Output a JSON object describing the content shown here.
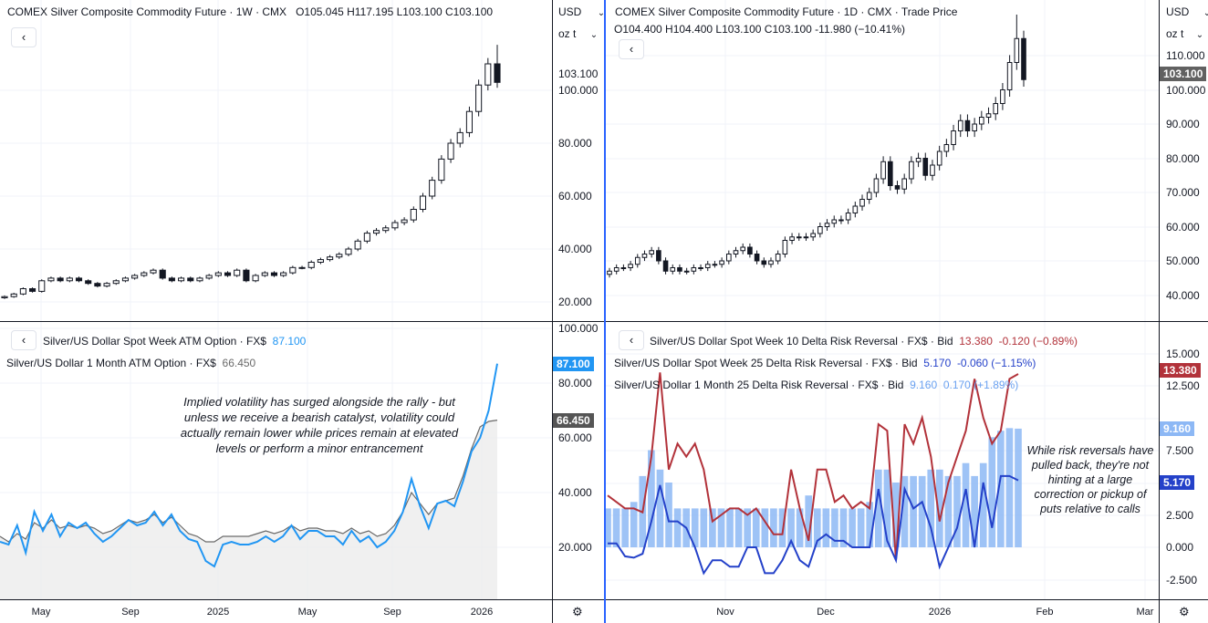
{
  "colors": {
    "candle": "#131722",
    "week_atm": "#2196f3",
    "month_atm": "#6a6a6a",
    "rr10": "#b2323a",
    "rr25w": "#2441c9",
    "rr25m": "#8db8f5",
    "grid": "#f0f3fa",
    "selected_border": "#2962ff",
    "price_tag_gray": "#616161",
    "price_tag_dark": "#555555"
  },
  "top_left": {
    "legend": {
      "title": "COMEX Silver Composite Commodity Future · 1W · CMX",
      "ohlc": "O105.045  H117.195  L103.100  C103.100"
    },
    "currency": "USD",
    "unit": "oz t",
    "axis": [
      "100.000",
      "80.000",
      "60.000",
      "40.000",
      "20.000"
    ],
    "last_label": "103.100",
    "closes": [
      22,
      23,
      25,
      24,
      28,
      29,
      28,
      29,
      28,
      27,
      26,
      27,
      28,
      29,
      30,
      31,
      32,
      29,
      28,
      29,
      28,
      29,
      30,
      31,
      30,
      32,
      28,
      30,
      31,
      30,
      31,
      33,
      33,
      35,
      36,
      37,
      38,
      40,
      43,
      46,
      47,
      48,
      50,
      51,
      55,
      60,
      66,
      74,
      80,
      84,
      92,
      102,
      110,
      103
    ],
    "last_high": 117.195
  },
  "top_right": {
    "legend": {
      "title": "COMEX Silver Composite Commodity Future · 1D · CMX · Trade Price",
      "ohlc": "O104.400  H104.400  L103.100  C103.100  -11.980 (−10.41%)"
    },
    "currency": "USD",
    "unit": "oz t",
    "axis": [
      "110.000",
      "100.000",
      "90.000",
      "80.000",
      "70.000",
      "60.000",
      "50.000",
      "40.000"
    ],
    "last_tag": "103.100",
    "closes": [
      47,
      48,
      48,
      49,
      51,
      52,
      53,
      50,
      47,
      48,
      47,
      47,
      48,
      48,
      49,
      49,
      50,
      52,
      53,
      54,
      52,
      50,
      49,
      50,
      52,
      56,
      57,
      57,
      57,
      58,
      60,
      61,
      62,
      62,
      64,
      66,
      68,
      70,
      74,
      79,
      72,
      71,
      74,
      79,
      80,
      75,
      78,
      82,
      84,
      88,
      91,
      88,
      90,
      92,
      93,
      96,
      100,
      108,
      115,
      103
    ],
    "peak_high": 122
  },
  "bottom_left": {
    "legend_week": {
      "title": "Silver/US Dollar Spot Week ATM Option · FX$",
      "value": "87.100"
    },
    "legend_month": {
      "title": "Silver/US Dollar 1 Month ATM Option · FX$",
      "value": "66.450"
    },
    "axis": [
      "100.000",
      "80.000",
      "60.000",
      "40.000",
      "20.000"
    ],
    "tag_week": "87.100",
    "tag_month": "66.450",
    "note": "Implied volatility has surged alongside the rally - but unless we receive a bearish catalyst, volatility could actually remain lower while prices remain at elevated levels or perform a minor entrancement",
    "week_atm": [
      22,
      21,
      28,
      18,
      33,
      26,
      32,
      24,
      29,
      27,
      29,
      25,
      22,
      24,
      27,
      30,
      28,
      29,
      33,
      28,
      32,
      26,
      23,
      22,
      15,
      13,
      21,
      22,
      21,
      21,
      22,
      24,
      22,
      24,
      28,
      23,
      26,
      26,
      24,
      24,
      21,
      26,
      22,
      24,
      20,
      22,
      26,
      33,
      45,
      35,
      27,
      36,
      37,
      35,
      44,
      55,
      60,
      70,
      87.1
    ],
    "month_atm": [
      24,
      22,
      25,
      23,
      29,
      27,
      30,
      27,
      28,
      27,
      28,
      27,
      25,
      26,
      28,
      30,
      29,
      30,
      32,
      29,
      31,
      28,
      25,
      24,
      22,
      22,
      24,
      24,
      24,
      24,
      25,
      26,
      25,
      26,
      28,
      26,
      27,
      27,
      26,
      26,
      25,
      27,
      25,
      26,
      24,
      25,
      28,
      33,
      40,
      36,
      32,
      36,
      37,
      38,
      46,
      56,
      64,
      66,
      66.45
    ]
  },
  "bottom_right": {
    "legend_rr10": {
      "title": "Silver/US Dollar Spot Week 10 Delta Risk Reversal · FX$ · Bid",
      "value": "13.380",
      "change": "-0.120 (−0.89%)"
    },
    "legend_rr25w": {
      "title": "Silver/US Dollar Spot Week 25 Delta Risk Reversal · FX$ · Bid",
      "value": "5.170",
      "change": "-0.060 (−1.15%)"
    },
    "legend_rr25m": {
      "title": "Silver/US Dollar 1 Month 25 Delta Risk Reversal · FX$ · Bid",
      "value": "9.160",
      "change": "0.170 (+1.89%)"
    },
    "axis": [
      "15.000",
      "12.500",
      "7.500",
      "2.500",
      "0.000",
      "-2.500"
    ],
    "tag_rr10": "13.380",
    "tag_rr25m": "9.160",
    "tag_rr25w": "5.170",
    "note": "While risk reversals have pulled back, they're not hinting at a large correction or pickup of puts relative to calls",
    "rr10": [
      4,
      3.5,
      3,
      3,
      2.7,
      7,
      13.5,
      6,
      8,
      7,
      8,
      6,
      2,
      2.5,
      3,
      3,
      2.5,
      3,
      2,
      1,
      1,
      6,
      3,
      0.5,
      6,
      6,
      3.5,
      4,
      3,
      3.5,
      3,
      9.5,
      9,
      -1,
      9.5,
      8,
      10,
      7,
      2,
      5,
      7,
      9,
      13,
      10,
      8,
      9,
      13,
      13.38
    ],
    "rr25w": [
      0.3,
      0.3,
      -0.7,
      -0.8,
      -0.5,
      2,
      4.8,
      2,
      2,
      1.5,
      0,
      -2,
      -1,
      -1,
      -1.5,
      -1.5,
      0,
      0,
      -2,
      -2,
      -1,
      0.5,
      -1,
      -1.5,
      0.5,
      1,
      0.5,
      0.5,
      0,
      0,
      0,
      4.5,
      0.5,
      -1,
      4.5,
      3,
      3.5,
      1.5,
      -1.5,
      0,
      1.5,
      4.5,
      0,
      5,
      1.5,
      5.5,
      5.5,
      5.17
    ],
    "rr25m": [
      3,
      3,
      3,
      3.5,
      5.5,
      7.5,
      6,
      5,
      3,
      3,
      3,
      3,
      3,
      3,
      3,
      3,
      3,
      3,
      3,
      3,
      3,
      3,
      3,
      4,
      3,
      3,
      3,
      3,
      3,
      3,
      3.5,
      6,
      6,
      5,
      5.5,
      5.5,
      5.5,
      6,
      6,
      5.5,
      5.5,
      6.5,
      5.5,
      6.5,
      8.5,
      9,
      9.2,
      9.16
    ]
  },
  "time_left": [
    "May",
    "Sep",
    "2025",
    "May",
    "Sep",
    "2026"
  ],
  "time_right": [
    "Nov",
    "Dec",
    "2026",
    "Feb",
    "Mar"
  ],
  "icons": {
    "back": "‹",
    "chevron": "⌄",
    "settings": "⚙"
  }
}
